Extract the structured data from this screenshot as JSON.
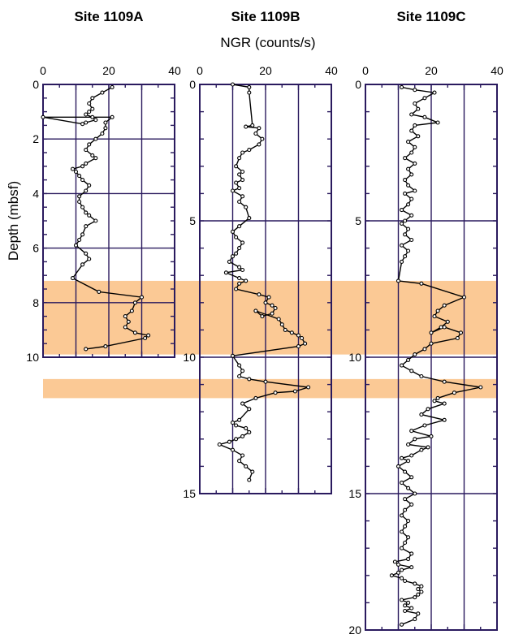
{
  "chart_data": {
    "type": "line",
    "x_axis_title": "NGR (counts/s)",
    "y_axis_title": "Depth (mbsf)",
    "highlight_color": "#fbc995",
    "grid_color": "#2a1a5e",
    "highlight_bands_depth": [
      [
        7.2,
        9.9
      ],
      [
        10.8,
        11.5
      ]
    ],
    "panels": [
      {
        "title": "Site 1109A",
        "xlim": [
          0,
          40
        ],
        "ylim": [
          0,
          10
        ],
        "x_ticks": [
          "0",
          "20",
          "40"
        ],
        "y_ticks": [
          "0",
          "2",
          "4",
          "6",
          "8",
          "10"
        ],
        "x_grid": [
          10,
          20,
          30
        ],
        "y_grid": [
          2,
          4,
          6,
          8
        ],
        "series": [
          {
            "x": [
              21,
              18,
              15,
              14,
              15,
              14,
              13,
              15,
              16,
              13,
              12,
              0,
              21,
              19,
              19,
              18,
              16,
              14,
              13,
              15,
              16,
              13,
              12,
              9,
              10,
              11,
              12,
              14,
              13,
              11,
              11,
              12,
              13,
              14,
              16,
              13,
              12,
              11,
              10,
              13,
              14,
              12,
              9,
              17,
              30,
              28,
              27,
              25,
              26,
              25,
              28,
              32,
              31,
              19,
              13
            ],
            "y": [
              0.1,
              0.3,
              0.5,
              0.7,
              0.9,
              1.0,
              1.1,
              1.2,
              1.3,
              1.4,
              1.45,
              1.2,
              1.2,
              1.4,
              1.6,
              1.8,
              2.0,
              2.2,
              2.4,
              2.6,
              2.7,
              2.9,
              3.0,
              3.1,
              3.2,
              3.35,
              3.5,
              3.7,
              3.9,
              4.1,
              4.3,
              4.5,
              4.7,
              4.8,
              5.0,
              5.2,
              5.5,
              5.7,
              5.9,
              6.2,
              6.4,
              6.6,
              7.1,
              7.6,
              7.8,
              8.0,
              8.3,
              8.5,
              8.7,
              8.9,
              9.1,
              9.2,
              9.3,
              9.6,
              9.7
            ]
          }
        ]
      },
      {
        "title": "Site 1109B",
        "xlim": [
          0,
          40
        ],
        "ylim": [
          0,
          15
        ],
        "x_ticks": [
          "0",
          "20",
          "40"
        ],
        "y_ticks": [
          "0",
          "5",
          "10",
          "15"
        ],
        "x_grid": [
          10,
          20,
          30
        ],
        "y_grid": [
          5,
          10
        ],
        "series": [
          {
            "x": [
              10,
              15,
              15,
              16,
              14,
              18,
              17,
              19,
              18,
              15,
              13,
              12,
              11,
              13,
              12,
              13,
              11,
              12,
              10,
              13,
              12,
              14,
              15,
              12,
              10,
              11,
              13,
              12,
              11,
              10,
              9,
              12,
              13,
              8,
              12,
              14,
              12,
              11,
              18,
              21,
              20,
              22,
              23,
              22,
              19,
              17,
              24,
              25,
              26,
              28,
              30,
              31,
              32,
              30,
              10,
              12,
              13,
              12,
              15,
              20,
              33,
              29,
              23,
              17,
              13,
              15,
              12,
              10,
              11,
              14,
              15,
              13,
              11,
              9,
              6,
              10,
              13,
              12,
              14,
              16,
              15
            ],
            "y": [
              0.0,
              0.1,
              0.3,
              1.5,
              1.55,
              1.6,
              1.8,
              2.0,
              2.2,
              2.4,
              2.5,
              2.7,
              3.0,
              3.2,
              3.3,
              3.5,
              3.6,
              3.8,
              3.9,
              4.1,
              4.3,
              4.5,
              4.9,
              5.2,
              5.4,
              5.6,
              5.8,
              6.0,
              6.2,
              6.3,
              6.5,
              6.7,
              6.8,
              6.9,
              7.1,
              7.2,
              7.3,
              7.5,
              7.7,
              7.8,
              8.0,
              8.1,
              8.2,
              8.4,
              8.5,
              8.3,
              8.6,
              8.8,
              9.0,
              9.1,
              9.2,
              9.3,
              9.5,
              9.6,
              9.95,
              10.3,
              10.5,
              10.7,
              10.8,
              10.9,
              11.1,
              11.25,
              11.3,
              11.5,
              11.7,
              11.9,
              12.3,
              12.4,
              12.5,
              12.6,
              12.75,
              12.9,
              13.0,
              13.1,
              13.2,
              13.4,
              13.6,
              13.8,
              14.0,
              14.2,
              14.5
            ]
          }
        ]
      },
      {
        "title": "Site 1109C",
        "xlim": [
          0,
          40
        ],
        "ylim": [
          0,
          20
        ],
        "x_ticks": [
          "0",
          "20",
          "40"
        ],
        "y_ticks": [
          "0",
          "5",
          "10",
          "15",
          "20"
        ],
        "x_grid": [
          10,
          20,
          30
        ],
        "y_grid": [
          5,
          10,
          15
        ],
        "series": [
          {
            "x": [
              11,
              15,
              21,
              18,
              15,
              16,
              14,
              18,
              22,
              15,
              14,
              16,
              13,
              15,
              14,
              12,
              15,
              13,
              14,
              12,
              13,
              15,
              12,
              14,
              13,
              11,
              14,
              12,
              11,
              13,
              12,
              14,
              11,
              13,
              12,
              11,
              10,
              17,
              30,
              24,
              22,
              21,
              25,
              23,
              20,
              24,
              29,
              28,
              20,
              18,
              15,
              13,
              11,
              14,
              17,
              24,
              35,
              27,
              22,
              21,
              24,
              19,
              17,
              24,
              18,
              14,
              20,
              15,
              13,
              19,
              17,
              14,
              11,
              13,
              10,
              12,
              14,
              11,
              13,
              15,
              12,
              14,
              12,
              11,
              13,
              12,
              11,
              13,
              12,
              11,
              14,
              13,
              9,
              10,
              14,
              11,
              10,
              8,
              11,
              12,
              15,
              17,
              16,
              17,
              16,
              15,
              11,
              13,
              12,
              14,
              12,
              16,
              15,
              11
            ],
            "y": [
              0.1,
              0.2,
              0.3,
              0.5,
              0.7,
              0.9,
              1.1,
              1.2,
              1.4,
              1.5,
              1.7,
              1.9,
              2.1,
              2.3,
              2.5,
              2.7,
              2.9,
              3.1,
              3.3,
              3.5,
              3.7,
              3.9,
              4.0,
              4.2,
              4.4,
              4.6,
              4.8,
              5.0,
              5.1,
              5.3,
              5.5,
              5.7,
              5.9,
              6.1,
              6.3,
              6.5,
              7.2,
              7.3,
              7.8,
              8.1,
              8.3,
              8.5,
              8.7,
              8.9,
              9.1,
              8.9,
              9.1,
              9.3,
              9.5,
              9.7,
              9.9,
              10.1,
              10.3,
              10.5,
              10.7,
              10.9,
              11.1,
              11.3,
              11.5,
              11.6,
              11.7,
              11.9,
              12.1,
              12.3,
              12.5,
              12.7,
              12.9,
              13.0,
              13.2,
              13.3,
              13.4,
              13.6,
              13.7,
              13.8,
              14.0,
              14.2,
              14.4,
              14.6,
              14.8,
              15.0,
              15.2,
              15.4,
              15.6,
              15.8,
              16.0,
              16.2,
              16.4,
              16.6,
              16.8,
              17.0,
              17.2,
              17.4,
              17.5,
              17.6,
              17.7,
              17.8,
              17.9,
              18.0,
              18.1,
              18.2,
              18.3,
              18.4,
              18.5,
              18.6,
              18.7,
              18.8,
              18.9,
              19.0,
              19.1,
              19.2,
              19.3,
              19.4,
              19.6,
              19.8
            ]
          }
        ]
      }
    ]
  }
}
